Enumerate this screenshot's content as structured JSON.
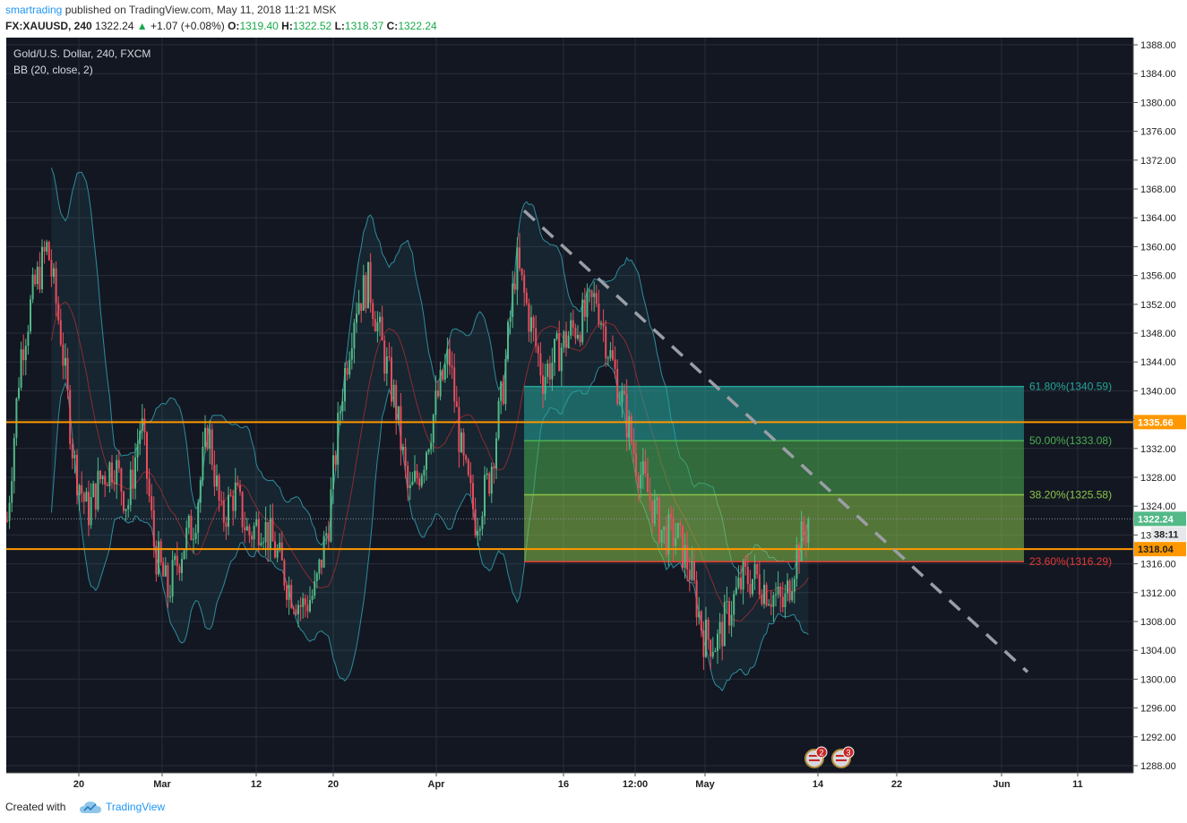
{
  "header": {
    "author": "smartrading",
    "published_text": "published on TradingView.com, May 11, 2018 11:21 MSK",
    "symbol": "FX:XAUUSD, 240",
    "last": "1322.24",
    "change": "+1.07 (+0.08%)",
    "o_label": "O:",
    "o_value": "1319.40",
    "h_label": "H:",
    "h_value": "1322.52",
    "l_label": "L:",
    "l_value": "1318.37",
    "c_label": "C:",
    "c_value": "1322.24"
  },
  "legend": {
    "title": "Gold/U.S. Dollar, 240, FXCM",
    "indicator": "BB (20, close, 2)"
  },
  "footer": {
    "created_with": "Created with",
    "brand": "TradingView"
  },
  "colors": {
    "background": "#131722",
    "grid": "#2a2e39",
    "up_candle": "#53b987",
    "down_candle": "#eb4d5c",
    "bb_band": "#2e8c9a",
    "bb_basis": "#8c2b32",
    "horizontal_line": "#ff9800",
    "trendline": "#9b9ea6",
    "fib_618": "#26a69a",
    "fib_500": "#4caf50",
    "fib_382": "#8bc34a",
    "fib_236": "#e53935"
  },
  "chart_data": {
    "type": "candlestick",
    "symbol": "FX:XAUUSD",
    "timeframe": "240",
    "ylim": [
      1287,
      1389
    ],
    "y_ticks": [
      "1388.00",
      "1384.00",
      "1380.00",
      "1376.00",
      "1372.00",
      "1368.00",
      "1364.00",
      "1360.00",
      "1356.00",
      "1352.00",
      "1348.00",
      "1344.00",
      "1340.00",
      "1336.00",
      "1332.00",
      "1328.00",
      "1324.00",
      "1320.00",
      "1316.00",
      "1312.00",
      "1308.00",
      "1304.00",
      "1300.00",
      "1296.00",
      "1292.00",
      "1288.00"
    ],
    "x_ticks": [
      "20",
      "Mar",
      "12",
      "20",
      "Apr",
      "16",
      "12:00",
      "May",
      "14",
      "22",
      "Jun",
      "11"
    ],
    "grid": true,
    "legend_position": "top-left",
    "price_path": [
      {
        "x": "Feb 13",
        "price": 1322
      },
      {
        "x": "Feb 14",
        "price": 1345
      },
      {
        "x": "Feb 15",
        "price": 1354
      },
      {
        "x": "Feb 16",
        "price": 1360
      },
      {
        "x": "Feb 19",
        "price": 1348
      },
      {
        "x": "Feb 21",
        "price": 1330
      },
      {
        "x": "Feb 22",
        "price": 1323
      },
      {
        "x": "Feb 23",
        "price": 1328
      },
      {
        "x": "Feb 26",
        "price": 1330
      },
      {
        "x": "Feb 27",
        "price": 1324
      },
      {
        "x": "Feb 28",
        "price": 1336
      },
      {
        "x": "Mar 1",
        "price": 1318
      },
      {
        "x": "Mar 2",
        "price": 1312
      },
      {
        "x": "Mar 5",
        "price": 1318
      },
      {
        "x": "Mar 6",
        "price": 1322
      },
      {
        "x": "Mar 8",
        "price": 1335
      },
      {
        "x": "Mar 9",
        "price": 1322
      },
      {
        "x": "Mar 12",
        "price": 1326
      },
      {
        "x": "Mar 13",
        "price": 1320
      },
      {
        "x": "Mar 15",
        "price": 1322
      },
      {
        "x": "Mar 16",
        "price": 1318
      },
      {
        "x": "Mar 19",
        "price": 1313
      },
      {
        "x": "Mar 20",
        "price": 1310
      },
      {
        "x": "Mar 21",
        "price": 1312
      },
      {
        "x": "Mar 22",
        "price": 1322
      },
      {
        "x": "Mar 23",
        "price": 1340
      },
      {
        "x": "Mar 26",
        "price": 1352
      },
      {
        "x": "Mar 27",
        "price": 1355
      },
      {
        "x": "Mar 28",
        "price": 1346
      },
      {
        "x": "Mar 29",
        "price": 1338
      },
      {
        "x": "Apr 2",
        "price": 1325
      },
      {
        "x": "Apr 3",
        "price": 1330
      },
      {
        "x": "Apr 4",
        "price": 1338
      },
      {
        "x": "Apr 5",
        "price": 1345
      },
      {
        "x": "Apr 6",
        "price": 1330
      },
      {
        "x": "Apr 9",
        "price": 1322
      },
      {
        "x": "Apr 10",
        "price": 1328
      },
      {
        "x": "Apr 11",
        "price": 1340
      },
      {
        "x": "Apr 11 16:00",
        "price": 1358
      },
      {
        "x": "Apr 12",
        "price": 1350
      },
      {
        "x": "Apr 13",
        "price": 1342
      },
      {
        "x": "Apr 16",
        "price": 1345
      },
      {
        "x": "Apr 17",
        "price": 1348
      },
      {
        "x": "Apr 18",
        "price": 1350
      },
      {
        "x": "Apr 19",
        "price": 1353
      },
      {
        "x": "Apr 20",
        "price": 1345
      },
      {
        "x": "Apr 23",
        "price": 1338
      },
      {
        "x": "Apr 24",
        "price": 1330
      },
      {
        "x": "Apr 25",
        "price": 1325
      },
      {
        "x": "Apr 26",
        "price": 1320
      },
      {
        "x": "Apr 27",
        "price": 1320
      },
      {
        "x": "Apr 30",
        "price": 1315
      },
      {
        "x": "May 1",
        "price": 1306
      },
      {
        "x": "May 2",
        "price": 1305
      },
      {
        "x": "May 3",
        "price": 1310
      },
      {
        "x": "May 4",
        "price": 1314
      },
      {
        "x": "May 7",
        "price": 1314
      },
      {
        "x": "May 8",
        "price": 1312
      },
      {
        "x": "May 9",
        "price": 1310
      },
      {
        "x": "May 10",
        "price": 1318
      },
      {
        "x": "May 11",
        "price": 1322.24
      }
    ],
    "horizontal_levels": [
      {
        "price": 1335.66,
        "label": "1335.66"
      },
      {
        "price": 1318.04,
        "label": "1318.04"
      }
    ],
    "last_price": {
      "price": 1322.24,
      "label": "1322.24",
      "countdown": "38:11"
    },
    "fibonacci": [
      {
        "level": "61.80%",
        "price": 1340.59,
        "label": "61.80%(1340.59)"
      },
      {
        "level": "50.00%",
        "price": 1333.08,
        "label": "50.00%(1333.08)"
      },
      {
        "level": "38.20%",
        "price": 1325.58,
        "label": "38.20%(1325.58)"
      },
      {
        "level": "23.60%",
        "price": 1316.29,
        "label": "23.60%(1316.29)"
      }
    ],
    "trendline": {
      "start": {
        "x": "Apr 11",
        "price": 1365
      },
      "end": {
        "x": "Jun 5",
        "price": 1301
      }
    },
    "events": [
      {
        "label": "2"
      },
      {
        "label": "3"
      }
    ]
  }
}
